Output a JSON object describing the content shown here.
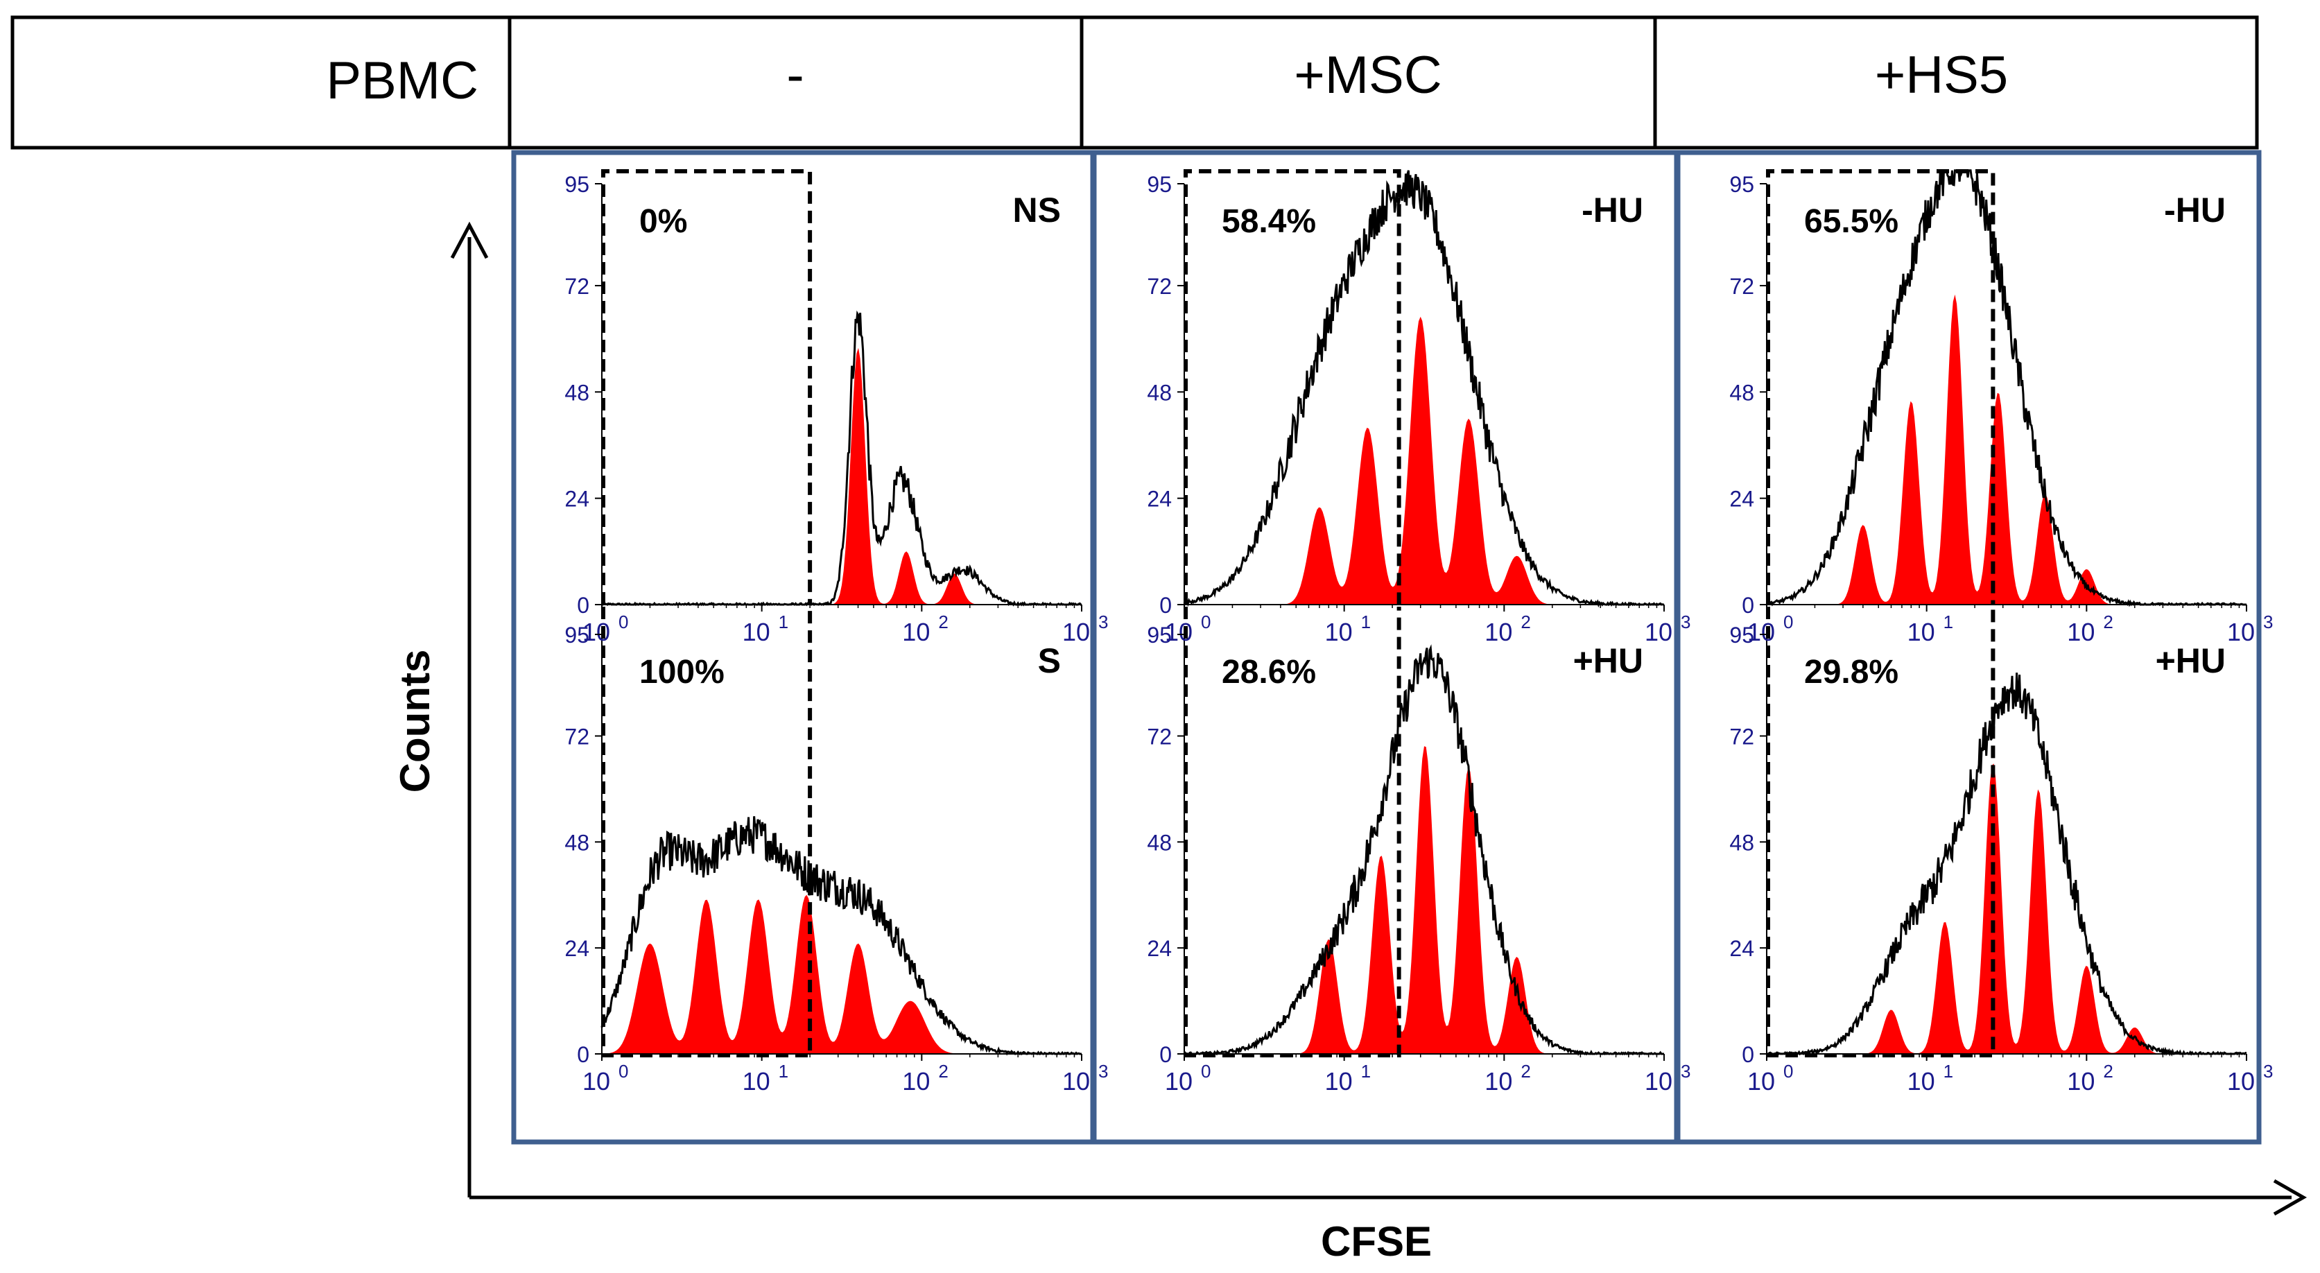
{
  "header": {
    "row_label": "PBMC",
    "columns": [
      "-",
      "+MSC",
      "+HS5"
    ]
  },
  "axes": {
    "xlabel": "CFSE",
    "ylabel": "Counts",
    "yticks": [
      "95",
      "72",
      "48",
      "24",
      "0"
    ],
    "xticks": [
      "10",
      "10",
      "10",
      "10"
    ],
    "xtick_exponents": [
      "0",
      "1",
      "2",
      "3"
    ]
  },
  "colors": {
    "fill": "#ff0000",
    "outline": "#000000",
    "frame": "#3f5f8f",
    "ticks": "#1a1a8c"
  },
  "chart_data": [
    {
      "type": "area",
      "panel": "PBMC -, top",
      "condition": "NS",
      "gate_percent": "0%",
      "xscale": "log",
      "xlim": [
        1,
        1000
      ],
      "ylim": [
        0,
        95
      ],
      "outline_peaks": [
        {
          "x": 40,
          "y": 64,
          "w": 0.055
        },
        {
          "x": 75,
          "y": 28,
          "w": 0.1
        },
        {
          "x": 180,
          "y": 8,
          "w": 0.12
        }
      ],
      "fill_peaks": [
        {
          "x": 40,
          "y": 58,
          "w": 0.045
        },
        {
          "x": 80,
          "y": 12,
          "w": 0.045
        },
        {
          "x": 160,
          "y": 7,
          "w": 0.045
        }
      ],
      "gate_upper_x": 20
    },
    {
      "type": "area",
      "panel": "PBMC -, bottom",
      "condition": "S",
      "gate_percent": "100%",
      "xscale": "log",
      "xlim": [
        1,
        1000
      ],
      "ylim": [
        0,
        95
      ],
      "outline_peaks": [
        {
          "x": 2.2,
          "y": 30,
          "w": 0.18
        },
        {
          "x": 8,
          "y": 48,
          "w": 0.35
        },
        {
          "x": 45,
          "y": 30,
          "w": 0.3
        }
      ],
      "fill_peaks": [
        {
          "x": 2,
          "y": 25,
          "w": 0.08
        },
        {
          "x": 4.5,
          "y": 35,
          "w": 0.065
        },
        {
          "x": 9.5,
          "y": 35,
          "w": 0.065
        },
        {
          "x": 19,
          "y": 36,
          "w": 0.065
        },
        {
          "x": 40,
          "y": 25,
          "w": 0.065
        },
        {
          "x": 85,
          "y": 12,
          "w": 0.09
        }
      ],
      "gate_upper_x": 20
    },
    {
      "type": "area",
      "panel": "+MSC, top",
      "condition": "-HU",
      "gate_percent": "58.4%",
      "xscale": "log",
      "xlim": [
        1,
        1000
      ],
      "ylim": [
        0,
        95
      ],
      "outline_peaks": [
        {
          "x": 8,
          "y": 45,
          "w": 0.3
        },
        {
          "x": 30,
          "y": 85,
          "w": 0.33
        }
      ],
      "fill_peaks": [
        {
          "x": 7,
          "y": 22,
          "w": 0.065
        },
        {
          "x": 14,
          "y": 40,
          "w": 0.065
        },
        {
          "x": 30,
          "y": 65,
          "w": 0.065
        },
        {
          "x": 60,
          "y": 42,
          "w": 0.065
        },
        {
          "x": 120,
          "y": 11,
          "w": 0.065
        }
      ],
      "gate_upper_x": 22
    },
    {
      "type": "area",
      "panel": "+MSC, bottom",
      "condition": "+HU",
      "gate_percent": "28.6%",
      "xscale": "log",
      "xlim": [
        1,
        1000
      ],
      "ylim": [
        0,
        95
      ],
      "outline_peaks": [
        {
          "x": 9,
          "y": 18,
          "w": 0.25
        },
        {
          "x": 35,
          "y": 88,
          "w": 0.28
        }
      ],
      "fill_peaks": [
        {
          "x": 8,
          "y": 26,
          "w": 0.055
        },
        {
          "x": 17,
          "y": 45,
          "w": 0.055
        },
        {
          "x": 32,
          "y": 70,
          "w": 0.055
        },
        {
          "x": 60,
          "y": 65,
          "w": 0.055
        },
        {
          "x": 120,
          "y": 22,
          "w": 0.055
        }
      ],
      "gate_upper_x": 22
    },
    {
      "type": "area",
      "panel": "+HS5, top",
      "condition": "-HU",
      "gate_percent": "65.5%",
      "xscale": "log",
      "xlim": [
        1,
        1000
      ],
      "ylim": [
        0,
        95
      ],
      "outline_peaks": [
        {
          "x": 6,
          "y": 35,
          "w": 0.25
        },
        {
          "x": 18,
          "y": 92,
          "w": 0.3
        }
      ],
      "fill_peaks": [
        {
          "x": 4,
          "y": 18,
          "w": 0.05
        },
        {
          "x": 8,
          "y": 46,
          "w": 0.05
        },
        {
          "x": 15,
          "y": 70,
          "w": 0.05
        },
        {
          "x": 28,
          "y": 48,
          "w": 0.05
        },
        {
          "x": 55,
          "y": 25,
          "w": 0.05
        },
        {
          "x": 100,
          "y": 8,
          "w": 0.05
        }
      ],
      "gate_upper_x": 26
    },
    {
      "type": "area",
      "panel": "+HS5, bottom",
      "condition": "+HU",
      "gate_percent": "29.8%",
      "xscale": "log",
      "xlim": [
        1,
        1000
      ],
      "ylim": [
        0,
        95
      ],
      "outline_peaks": [
        {
          "x": 8,
          "y": 22,
          "w": 0.22
        },
        {
          "x": 35,
          "y": 82,
          "w": 0.3
        }
      ],
      "fill_peaks": [
        {
          "x": 6,
          "y": 10,
          "w": 0.05
        },
        {
          "x": 13,
          "y": 30,
          "w": 0.05
        },
        {
          "x": 26,
          "y": 66,
          "w": 0.05
        },
        {
          "x": 50,
          "y": 60,
          "w": 0.05
        },
        {
          "x": 100,
          "y": 20,
          "w": 0.05
        },
        {
          "x": 200,
          "y": 6,
          "w": 0.05
        }
      ],
      "gate_upper_x": 26
    }
  ]
}
